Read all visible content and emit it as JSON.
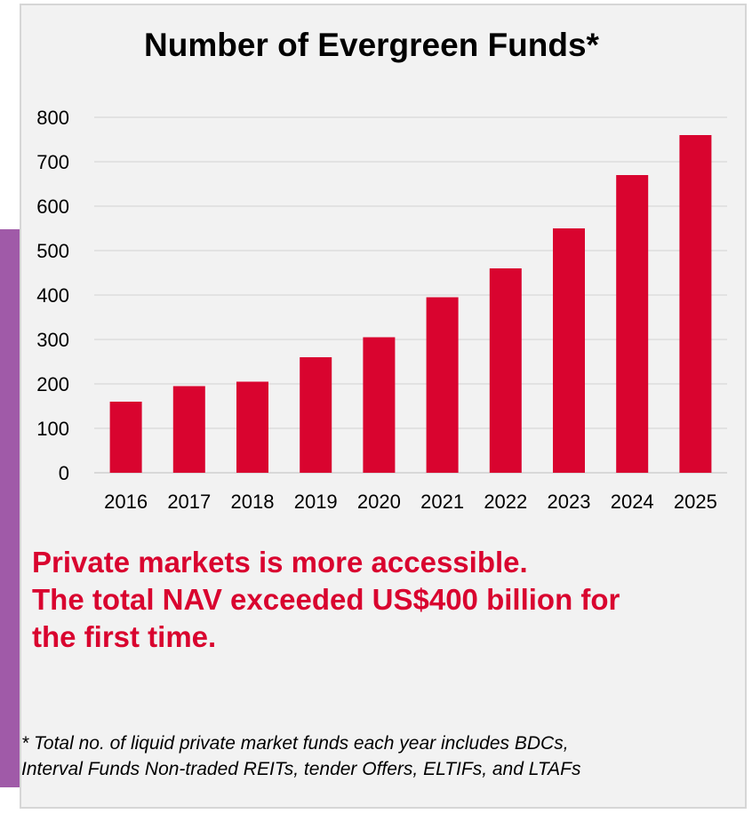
{
  "accent_color": "#d9042f",
  "side_bar_color": "#a05aa8",
  "chart_data": {
    "type": "bar",
    "title": "Number of Evergreen Funds*",
    "xlabel": "",
    "ylabel": "",
    "categories": [
      "2016",
      "2017",
      "2018",
      "2019",
      "2020",
      "2021",
      "2022",
      "2023",
      "2024",
      "2025"
    ],
    "values": [
      160,
      195,
      205,
      260,
      305,
      395,
      460,
      550,
      670,
      760
    ],
    "ylim": [
      0,
      800
    ],
    "yticks": [
      0,
      100,
      200,
      300,
      400,
      500,
      600,
      700,
      800
    ],
    "grid": true,
    "legend": "none",
    "bar_color": "#d9042f"
  },
  "headline": {
    "lines": [
      "Private markets is more accessible.",
      "The total NAV exceeded US$400 billion for",
      "the first time."
    ]
  },
  "footnote": {
    "lines": [
      "* Total no. of liquid private market funds each year includes BDCs,",
      "Interval Funds Non-traded REITs, tender Offers, ELTIFs, and LTAFs"
    ]
  }
}
